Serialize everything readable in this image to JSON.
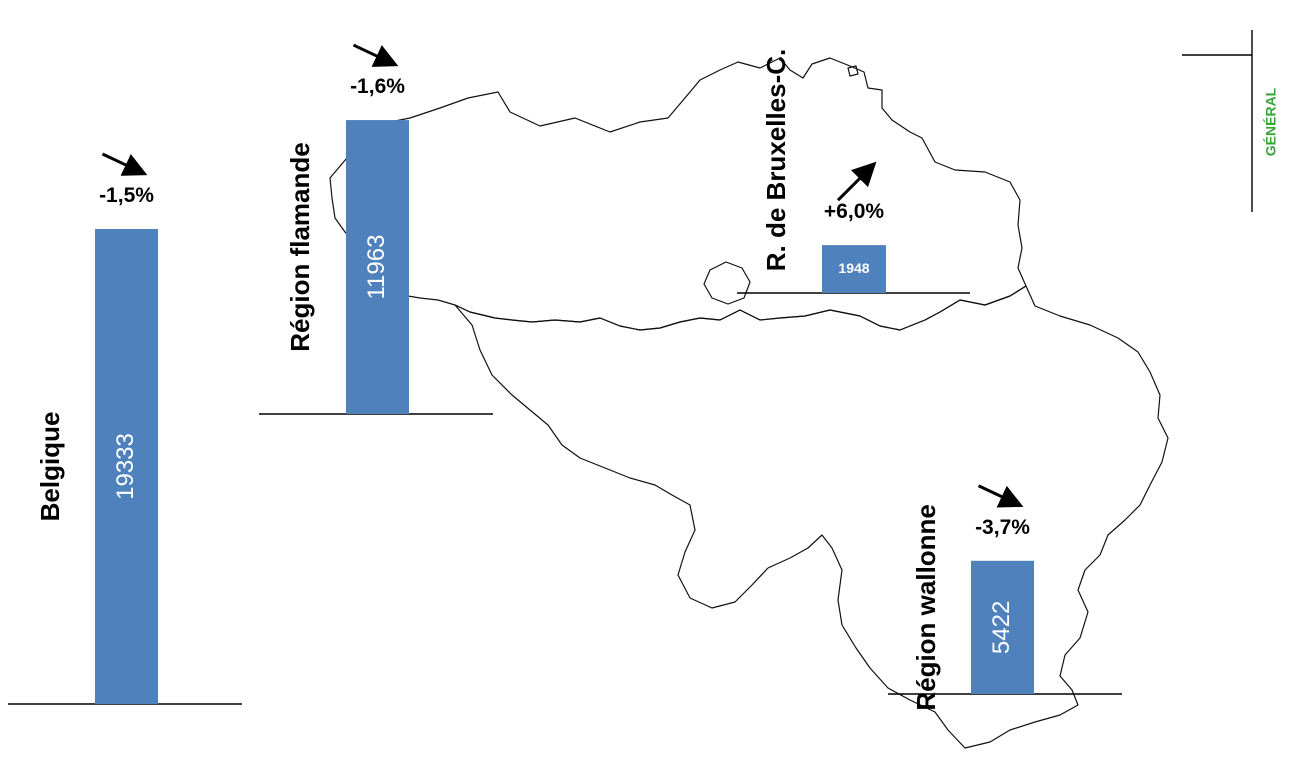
{
  "page_tag": "GÉNÉRAL",
  "colors": {
    "bar": "#4f81bd",
    "tag": "#3aa537",
    "map_outline": "#111111"
  },
  "chart_data": {
    "type": "bar",
    "series": [
      {
        "name": "Belgique",
        "value": 19333,
        "value_label": "19333",
        "change": "-1,5%",
        "trend": "down"
      },
      {
        "name": "Région flamande",
        "value": 11963,
        "value_label": "11963",
        "change": "-1,6%",
        "trend": "down"
      },
      {
        "name": "R. de Bruxelles-C.",
        "value": 1948,
        "value_label": "1948",
        "change": "+6,0%",
        "trend": "up"
      },
      {
        "name": "Région wallonne",
        "value": 5422,
        "value_label": "5422",
        "change": "-3,7%",
        "trend": "down"
      }
    ]
  }
}
